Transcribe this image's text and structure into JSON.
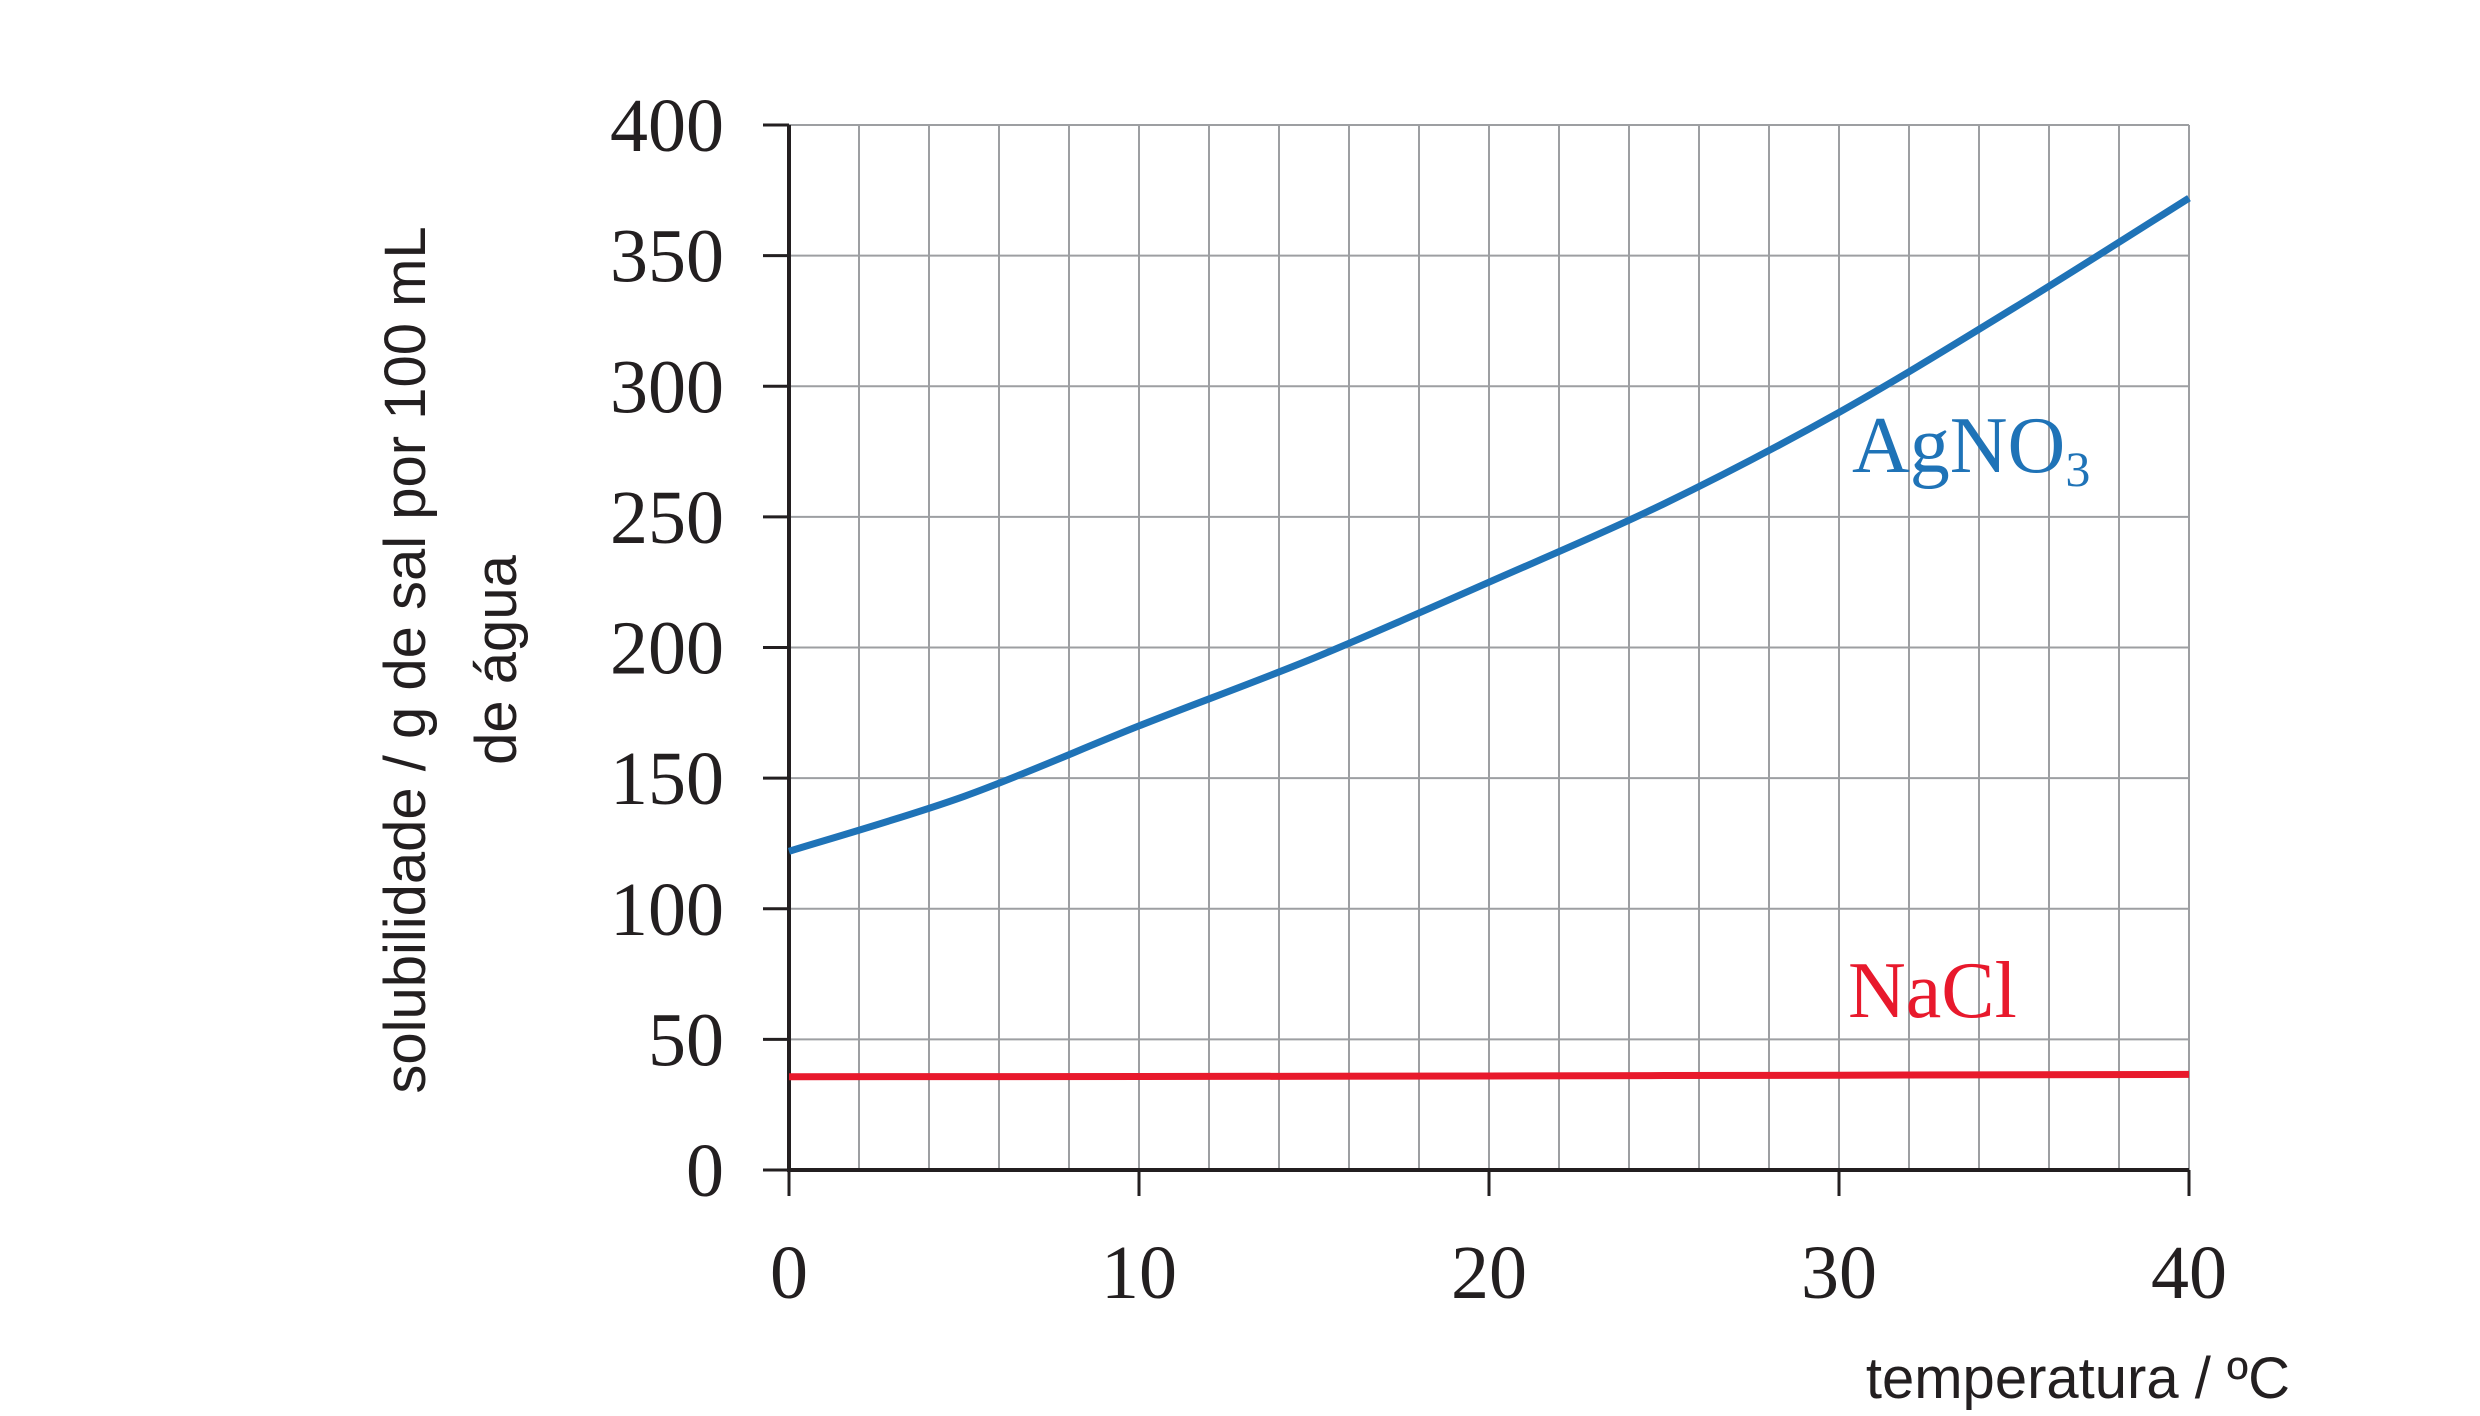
{
  "chart_data": {
    "type": "line",
    "xlabel": "temperatura / ºC",
    "ylabel": [
      "solubilidade / g de sal por 100 mL",
      "de água"
    ],
    "xlim": [
      0,
      40
    ],
    "ylim": [
      0,
      400
    ],
    "xticks": [
      0,
      10,
      20,
      30,
      40
    ],
    "yticks": [
      0,
      50,
      100,
      150,
      200,
      250,
      300,
      350,
      400
    ],
    "x_gridlines_every": 2,
    "y_gridlines_every": 50,
    "grid": true,
    "series": [
      {
        "name": "AgNO",
        "name_subscript": "3",
        "color": "#1f73b7",
        "x": [
          0,
          5,
          10,
          15,
          20,
          25,
          30,
          35,
          40
        ],
        "y": [
          122,
          143,
          170,
          196,
          225,
          255,
          290,
          330,
          372
        ]
      },
      {
        "name": "NaCl",
        "name_subscript": "",
        "color": "#e8192c",
        "x": [
          0,
          10,
          20,
          30,
          40
        ],
        "y": [
          35.7,
          35.8,
          36.0,
          36.3,
          36.6
        ]
      }
    ]
  }
}
